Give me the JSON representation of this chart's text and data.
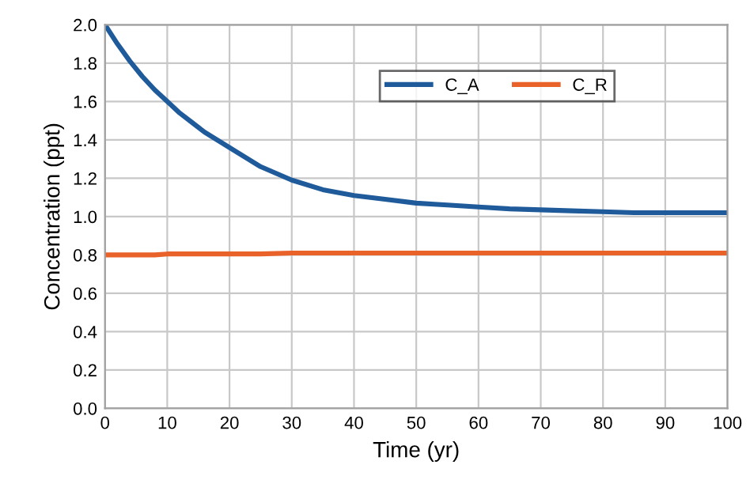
{
  "chart_data": {
    "type": "line",
    "xlabel": "Time (yr)",
    "ylabel": "Concentration (ppt)",
    "x": [
      0,
      2,
      4,
      6,
      8,
      10,
      12,
      14,
      16,
      18,
      20,
      25,
      30,
      35,
      40,
      45,
      50,
      55,
      60,
      65,
      70,
      75,
      80,
      85,
      90,
      95,
      100
    ],
    "series": [
      {
        "name": "C_A",
        "color": "#1f5b9a",
        "values": [
          2.0,
          1.9,
          1.81,
          1.73,
          1.66,
          1.6,
          1.54,
          1.49,
          1.44,
          1.4,
          1.36,
          1.26,
          1.19,
          1.14,
          1.11,
          1.09,
          1.07,
          1.06,
          1.05,
          1.04,
          1.035,
          1.03,
          1.025,
          1.02,
          1.02,
          1.02,
          1.02
        ]
      },
      {
        "name": "C_R",
        "color": "#e8622a",
        "values": [
          0.8,
          0.8,
          0.8,
          0.8,
          0.8,
          0.805,
          0.805,
          0.805,
          0.805,
          0.805,
          0.805,
          0.805,
          0.81,
          0.81,
          0.81,
          0.81,
          0.81,
          0.81,
          0.81,
          0.81,
          0.81,
          0.81,
          0.81,
          0.81,
          0.81,
          0.81,
          0.81
        ]
      }
    ],
    "xlim": [
      0,
      100
    ],
    "xticks": [
      0,
      10,
      20,
      30,
      40,
      50,
      60,
      70,
      80,
      90,
      100
    ],
    "ylim": [
      0,
      2
    ],
    "yticks": [
      {
        "value": 0,
        "label": "0.0"
      },
      {
        "value": 0.2,
        "label": "0.2"
      },
      {
        "value": 0.4,
        "label": "0.4"
      },
      {
        "value": 0.6,
        "label": "0.6"
      },
      {
        "value": 0.8,
        "label": "0.8"
      },
      {
        "value": 1.0,
        "label": "1.0"
      },
      {
        "value": 1.2,
        "label": "1.2"
      },
      {
        "value": 1.4,
        "label": "1.4"
      },
      {
        "value": 1.6,
        "label": "1.6"
      },
      {
        "value": 1.8,
        "label": "1.8"
      },
      {
        "value": 2.0,
        "label": "2.0"
      }
    ],
    "grid": true,
    "legend": "top right",
    "marker": "none",
    "line_style": "solid"
  }
}
